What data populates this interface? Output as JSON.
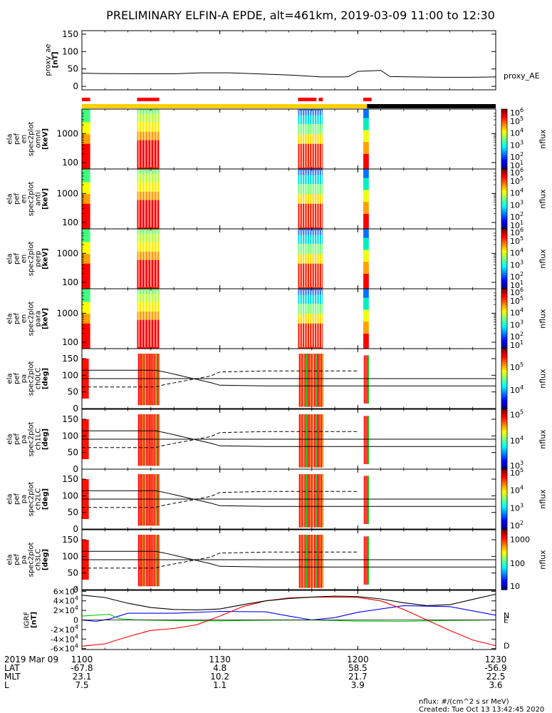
{
  "title": "PRELIMINARY ELFIN-A EPDE, alt=461km, 2019-03-09 11:00 to 12:30",
  "chart_data": {
    "time_range": [
      "2019-03-09 11:00",
      "2019-03-09 12:30"
    ],
    "time_ticks": [
      {
        "t": 0,
        "label": "1100"
      },
      {
        "t": 30,
        "label": "1130"
      },
      {
        "t": 60,
        "label": "1200"
      },
      {
        "t": 90,
        "label": "1230"
      }
    ],
    "ae_panel": {
      "type": "line",
      "ylabel": [
        "proxy_ae",
        "[nT]"
      ],
      "legend": "proxy_AE",
      "ylim": [
        -10,
        160
      ],
      "yticks": [
        "0",
        "50",
        "100",
        "150"
      ],
      "ytick_values": [
        0,
        50,
        100,
        150
      ],
      "x": [
        0,
        4,
        12,
        20,
        26,
        32,
        40,
        46,
        52,
        57,
        58,
        60,
        65,
        67,
        72,
        78,
        85,
        90
      ],
      "y": [
        38,
        37,
        36,
        36,
        39,
        39,
        35,
        32,
        27,
        27,
        28,
        43,
        46,
        28,
        27,
        26,
        26,
        27
      ]
    },
    "status_bars": {
      "science_zones": [
        [
          0,
          1.8
        ],
        [
          12,
          16.8
        ],
        [
          47,
          51
        ],
        [
          51.5,
          52.4
        ],
        [
          61.2,
          63
        ]
      ],
      "sunlit": [
        0,
        62
      ],
      "shadow": [
        62,
        90
      ]
    },
    "energy_panels": [
      {
        "ylabel": [
          "ela",
          "pef",
          "en",
          "spec2plot",
          "omni",
          "[keV]"
        ]
      },
      {
        "ylabel": [
          "ela",
          "pef",
          "en",
          "spec2plot",
          "anti",
          "[keV]"
        ]
      },
      {
        "ylabel": [
          "ela",
          "pef",
          "en",
          "spec2plot",
          "perp",
          "[keV]"
        ]
      },
      {
        "ylabel": [
          "ela",
          "pef",
          "en",
          "spec2plot",
          "para",
          "[keV]"
        ]
      }
    ],
    "energy_axis": {
      "scale": "log",
      "ylim": [
        60,
        7000
      ],
      "yticks": [
        "100",
        "1000"
      ],
      "ytick_values": [
        100,
        1000
      ]
    },
    "energy_colorbar": {
      "label": "nflux",
      "scale": "log",
      "range": [
        10,
        1000000
      ],
      "ticks": [
        "10",
        "10",
        "10",
        "10",
        "10",
        "10"
      ],
      "ticks_exp": [
        "1",
        "2",
        "3",
        "4",
        "5",
        "6"
      ]
    },
    "pa_panels": [
      {
        "ylabel": [
          "ela",
          "pef",
          "pa",
          "spec2plot",
          "ch0LC",
          "[deg]"
        ],
        "colorbar": {
          "ticks": [
            "10",
            "10"
          ],
          "ticks_exp": [
            "4",
            "5"
          ],
          "t_exp": [
            4,
            5
          ],
          "range_exp": [
            3.2,
            5.8
          ]
        }
      },
      {
        "ylabel": [
          "ela",
          "pef",
          "pa",
          "spec2plot",
          "ch1LC",
          "[deg]"
        ],
        "colorbar": {
          "ticks": [
            "10",
            "10",
            "10"
          ],
          "ticks_exp": [
            "3",
            "4",
            "5"
          ],
          "t_exp": [
            3,
            4,
            5
          ],
          "range_exp": [
            2.9,
            5.2
          ]
        }
      },
      {
        "ylabel": [
          "ela",
          "pef",
          "pa",
          "spec2plot",
          "ch2LC",
          "[deg]"
        ],
        "colorbar": {
          "ticks": [
            "10",
            "10",
            "10",
            "10"
          ],
          "ticks_exp": [
            "2",
            "3",
            "4",
            "5"
          ],
          "t_exp": [
            2,
            3,
            4,
            5
          ],
          "range_exp": [
            1.8,
            5.2
          ]
        }
      },
      {
        "ylabel": [
          "ela",
          "pef",
          "pa",
          "spec2plot",
          "ch3LC",
          "[deg]"
        ],
        "colorbar": {
          "ticks": [
            "10",
            "100",
            "1000"
          ],
          "ticks_exp": [
            "",
            "",
            ""
          ],
          "t_exp": [
            1,
            2,
            3
          ],
          "range_exp": [
            0.9,
            3.4
          ]
        }
      }
    ],
    "pa_axis": {
      "ylim": [
        0,
        180
      ],
      "yticks": [
        "0",
        "50",
        "100",
        "150"
      ],
      "ytick_values": [
        0,
        50,
        100,
        150
      ]
    },
    "pa_colorbar_label": "nflux",
    "igrf_panel": {
      "type": "line",
      "ylabel": [
        "IGRF",
        "[nT]"
      ],
      "ylim": [
        -62000,
        62000
      ],
      "yticks": [
        "-6×10",
        "-4×10",
        "-2×10",
        "0",
        "2×10",
        "4×10",
        "6×10"
      ],
      "ytick_exp": [
        "4",
        "4",
        "4",
        "",
        "4",
        "4",
        "4"
      ],
      "ytick_values": [
        -60000,
        -40000,
        -20000,
        0,
        20000,
        40000,
        60000
      ],
      "series": [
        {
          "name": "N",
          "color": "#0000ff",
          "x": [
            0,
            3,
            6,
            10,
            20,
            30,
            40,
            45,
            50,
            55,
            60,
            70,
            80,
            90
          ],
          "y": [
            0,
            -3000,
            2000,
            14000,
            14000,
            18000,
            17000,
            8000,
            0,
            5000,
            16000,
            30000,
            28000,
            10000
          ]
        },
        {
          "name": "E",
          "color": "#00cc00",
          "x": [
            0,
            6,
            8,
            12,
            20,
            30,
            40,
            50,
            60,
            70,
            80,
            90
          ],
          "y": [
            8000,
            12000,
            3000,
            0,
            -1500,
            -2000,
            -500,
            0,
            -2500,
            -3000,
            -1000,
            0
          ]
        },
        {
          "name": "D",
          "color": "#ff0000",
          "x": [
            0,
            5,
            10,
            15,
            20,
            25,
            30,
            35,
            40,
            45,
            50,
            55,
            60,
            65,
            70,
            75,
            80,
            85,
            90
          ],
          "y": [
            -55000,
            -50000,
            -35000,
            -22000,
            -18000,
            -10000,
            8000,
            28000,
            40000,
            46000,
            48000,
            48000,
            47000,
            40000,
            22000,
            0,
            -22000,
            -42000,
            -54000
          ]
        },
        {
          "name": "",
          "color": "#000000",
          "x": [
            0,
            5,
            10,
            15,
            20,
            25,
            30,
            35,
            40,
            45,
            50,
            55,
            60,
            65,
            70,
            75,
            80,
            85,
            90
          ],
          "y": [
            52000,
            47000,
            35000,
            26000,
            22000,
            21000,
            23000,
            32000,
            40000,
            45000,
            48000,
            50000,
            49000,
            44000,
            36000,
            30000,
            32000,
            43000,
            54000
          ]
        }
      ]
    },
    "ephemeris": {
      "date_label": "2019 Mar 09",
      "rows": [
        {
          "name": "LAT",
          "values": [
            "-67.8",
            "4.8",
            "58.5",
            "-56.9"
          ]
        },
        {
          "name": "MLT",
          "values": [
            "23.1",
            "10.2",
            "21.7",
            "22.5"
          ]
        },
        {
          "name": "L",
          "values": [
            "7.5",
            "1.1",
            "3.9",
            "3.6"
          ]
        }
      ]
    }
  },
  "footer": {
    "nflux_units": "nflux: #/(cm^2 s sr MeV)",
    "created": "Created: Tue Oct 13 13:42:45 2020"
  }
}
